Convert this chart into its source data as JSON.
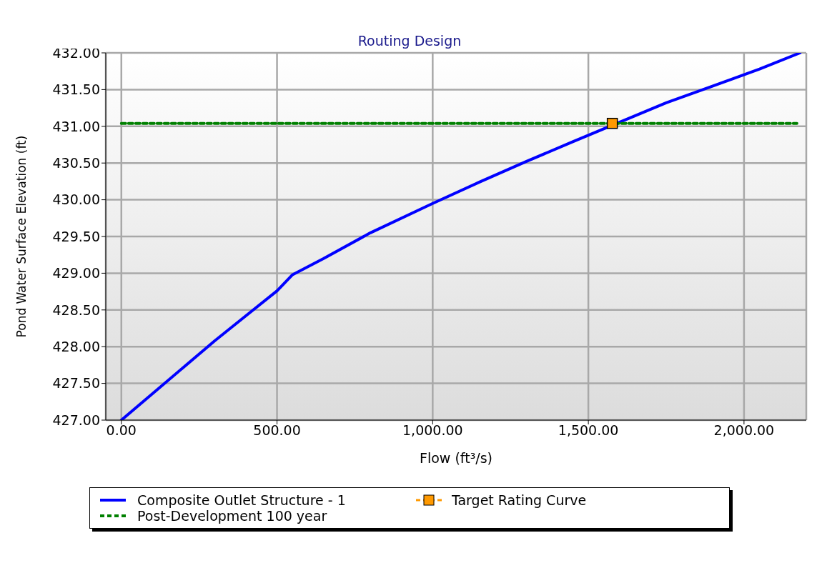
{
  "chart_data": {
    "type": "line",
    "title": "Routing Design",
    "xlabel": "Flow (ft³/s)",
    "ylabel": "Pond Water Surface Elevation (ft)",
    "xlim": [
      -50,
      2200
    ],
    "xticks": [
      {
        "value": 0,
        "label": "0.00"
      },
      {
        "value": 500,
        "label": "500.00"
      },
      {
        "value": 1000,
        "label": "1,000.00"
      },
      {
        "value": 1500,
        "label": "1,500.00"
      },
      {
        "value": 2000,
        "label": "2,000.00"
      }
    ],
    "ylim": [
      427,
      432
    ],
    "yticks": [
      {
        "value": 427,
        "label": "427.00"
      },
      {
        "value": 427.5,
        "label": "427.50"
      },
      {
        "value": 428,
        "label": "428.00"
      },
      {
        "value": 428.5,
        "label": "428.50"
      },
      {
        "value": 429,
        "label": "429.00"
      },
      {
        "value": 429.5,
        "label": "429.50"
      },
      {
        "value": 430,
        "label": "430.00"
      },
      {
        "value": 430.5,
        "label": "430.50"
      },
      {
        "value": 431,
        "label": "431.00"
      },
      {
        "value": 431.5,
        "label": "431.50"
      },
      {
        "value": 432,
        "label": "432.00"
      }
    ],
    "grid": true,
    "legend": "bottom",
    "series": [
      {
        "name": "Composite Outlet Structure - 1",
        "type": "line",
        "color": "#0000ff",
        "marker": "none",
        "line_style": "solid",
        "x": [
          0,
          100,
          200,
          300,
          400,
          500,
          550,
          650,
          800,
          1000,
          1150,
          1300,
          1450,
          1750,
          1900,
          2050,
          2180
        ],
        "values": [
          427,
          427.36,
          427.72,
          428.08,
          428.42,
          428.76,
          428.98,
          429.2,
          429.55,
          429.95,
          430.24,
          430.52,
          430.79,
          431.32,
          431.55,
          431.78,
          432
        ]
      },
      {
        "name": "Target Rating Curve",
        "type": "scatter",
        "color": "#ff9900",
        "marker": "square",
        "x": [
          1577
        ],
        "values": [
          431.04
        ]
      },
      {
        "name": "Post-Development 100 year",
        "type": "line",
        "color": "#008000",
        "marker": "none",
        "line_style": "dashed",
        "x": [
          0,
          2170
        ],
        "values": [
          431.04,
          431.04
        ]
      }
    ]
  }
}
